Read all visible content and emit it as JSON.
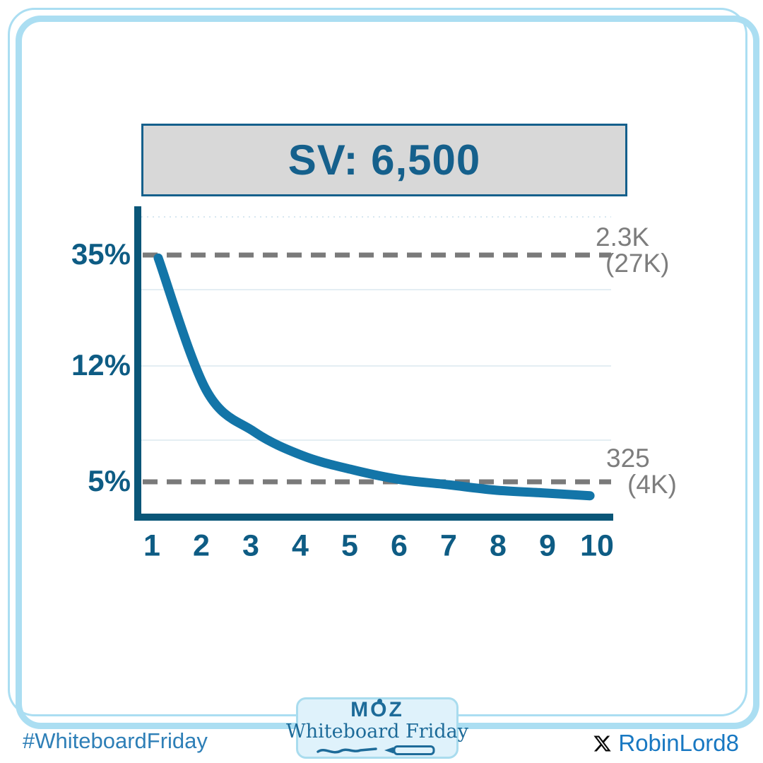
{
  "title_box": {
    "label": "SV: 6,500"
  },
  "chart": {
    "y_ticks": [
      "35%",
      "12%",
      "5%"
    ],
    "x_ticks": [
      "1",
      "2",
      "3",
      "4",
      "5",
      "6",
      "7",
      "8",
      "9",
      "10"
    ],
    "annotation_top": {
      "line1": "2.3K",
      "line2": "(27K)"
    },
    "annotation_bottom": {
      "line1": "325",
      "line2": "(4K)"
    }
  },
  "chart_data": {
    "type": "line",
    "title": "SV: 6,500",
    "x": [
      1,
      2,
      3,
      4,
      5,
      6,
      7,
      8,
      9,
      10
    ],
    "series": [
      {
        "name": "ctr-by-position-curve",
        "values": [
          34,
          10,
          7.3,
          6.1,
          5.5,
          5.1,
          4.9,
          4.7,
          4.6,
          4.5
        ]
      }
    ],
    "xlabel": "",
    "ylabel": "",
    "x_tick_labels": [
      "1",
      "2",
      "3",
      "4",
      "5",
      "6",
      "7",
      "8",
      "9",
      "10"
    ],
    "y_tick_labels": [
      "35%",
      "12%",
      "5%"
    ],
    "annotations": [
      {
        "at_y_label": "35%",
        "text": "2.3K (27K)",
        "line_style": "dashed"
      },
      {
        "at_y_label": "5%",
        "text": "325 (4K)",
        "line_style": "dashed"
      }
    ],
    "grid": true,
    "legend": false,
    "line_color": "#1375a8"
  },
  "footer": {
    "hashtag": "#WhiteboardFriday",
    "badge": {
      "brand": "MOZ",
      "series": "Whiteboard Friday"
    },
    "credit": {
      "handle": "RobinLord8"
    }
  },
  "colors": {
    "frame": "#abdef2",
    "axis": "#0a5678",
    "curve": "#1375a8",
    "tick_label": "#0e5c84",
    "title_text": "#15608c",
    "title_bg": "#d8d8d8",
    "dashed_line": "#7a7a7a",
    "annotation_text": "#7d7d7d",
    "hashtag_text": "#2e7fb7",
    "credit_text": "#1878c2",
    "badge_bg": "#dff2fb",
    "badge_border": "#a9dcee",
    "moz_blue": "#1d6b99"
  }
}
